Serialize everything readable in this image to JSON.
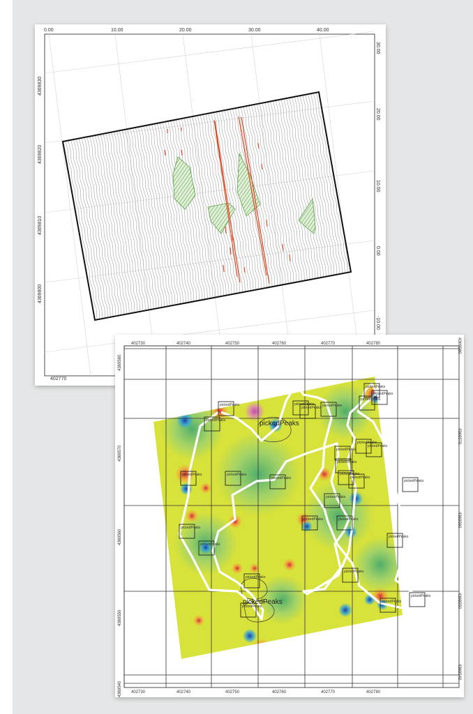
{
  "survey_map": {
    "top_ticks": [
      "0.00",
      "10.00",
      "20.00",
      "30.00",
      "40.00"
    ],
    "right_ticks": [
      "30.00",
      "20.00",
      "10.00",
      "0.00",
      "-10.00"
    ],
    "left_ticks": [
      "4369830",
      "4369820",
      "4369810",
      "4369800"
    ],
    "bottom_tick": "402770",
    "colors": {
      "survey_lines": "#9a9a9a",
      "anomaly_lines": "#d9421b",
      "hatched_areas": "#5ea24a",
      "frame": "#111111"
    }
  },
  "anomaly_map": {
    "top_ticks": [
      "402730",
      "402740",
      "402750",
      "402760",
      "402770",
      "402780"
    ],
    "bottom_ticks": [
      "402730",
      "402740",
      "402750",
      "402760",
      "402770",
      "402780"
    ],
    "left_ticks": [
      "4369580",
      "4369570",
      "4369560",
      "4369550",
      "4369540"
    ],
    "right_ticks": [
      "4369580",
      "4369570",
      "4369560",
      "4369550",
      "4369540"
    ],
    "pick_label": "pickedPeaks",
    "big_labels": [
      "pickedPeaks",
      "pickedPeaks"
    ],
    "colors": {
      "heatmap_base": "#d7e23a",
      "route": "#ffffff",
      "high": "#e8453c",
      "low": "#2a4fb5"
    }
  }
}
